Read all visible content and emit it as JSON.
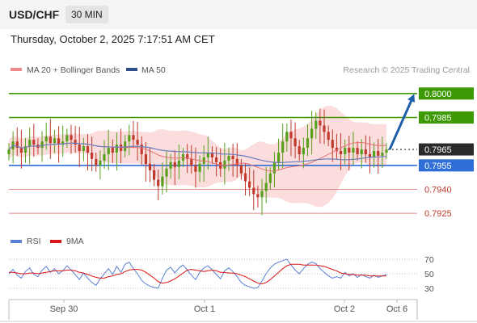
{
  "header": {
    "symbol": "USD/CHF",
    "timeframe": "30 MIN"
  },
  "timestamp": "Thursday, October 2, 2025 7:17:51 AM CET",
  "legend": {
    "bollinger": "MA 20 + Bollinger Bands",
    "ma50": "MA 50"
  },
  "attribution": "Research © 2025 Trading Central",
  "colors": {
    "up": "#56a01c",
    "down": "#c0392b",
    "bollinger_fill": "#f9d1d1",
    "ma20": "#e57373",
    "ma50": "#6b7dbf",
    "resistance": "#3d9a04",
    "pivot": "#2f6ed6",
    "support": "#e58a8a",
    "last": "#2b2b2b",
    "arrow": "#1d5ea8",
    "rsi": "#5b7fd6",
    "rsi_ma": "#d91515"
  },
  "chart_data": [
    {
      "type": "candlestick",
      "title": "",
      "x_tick_labels": [
        "Sep 30",
        "Oct 1",
        "Oct 2",
        "Oct 6"
      ],
      "ylim": [
        0.7917,
        0.8008
      ],
      "y_labels": [
        {
          "value": "0.8000",
          "role": "resistance"
        },
        {
          "value": "0.7985",
          "role": "resistance"
        },
        {
          "value": "0.7965",
          "role": "last"
        },
        {
          "value": "0.7955",
          "role": "pivot"
        },
        {
          "value": "0.7940",
          "role": "support"
        },
        {
          "value": "0.7925",
          "role": "support"
        }
      ],
      "projection": {
        "from": 0.7965,
        "to": 0.8,
        "direction": "up"
      },
      "closes": [
        0.7965,
        0.797,
        0.7966,
        0.7963,
        0.7967,
        0.7971,
        0.7968,
        0.7966,
        0.797,
        0.7973,
        0.7969,
        0.7972,
        0.7968,
        0.797,
        0.7974,
        0.7971,
        0.7968,
        0.7964,
        0.7967,
        0.7963,
        0.7959,
        0.7955,
        0.7958,
        0.7962,
        0.7966,
        0.7963,
        0.7968,
        0.7964,
        0.797,
        0.7974,
        0.7971,
        0.7968,
        0.7962,
        0.7956,
        0.7952,
        0.7946,
        0.7942,
        0.7948,
        0.7953,
        0.7957,
        0.7954,
        0.7958,
        0.7962,
        0.7959,
        0.7955,
        0.7951,
        0.7956,
        0.796,
        0.7963,
        0.796,
        0.7957,
        0.7953,
        0.7958,
        0.7961,
        0.7959,
        0.7955,
        0.795,
        0.7945,
        0.7941,
        0.7937,
        0.7935,
        0.7939,
        0.7944,
        0.795,
        0.7957,
        0.7963,
        0.797,
        0.7976,
        0.7972,
        0.7967,
        0.7962,
        0.7966,
        0.7972,
        0.7978,
        0.7983,
        0.798,
        0.7976,
        0.7971,
        0.7966,
        0.7964,
        0.7962,
        0.7966,
        0.7963,
        0.7966,
        0.7962,
        0.7965,
        0.7962,
        0.796,
        0.7964,
        0.7961,
        0.7963,
        0.7965
      ]
    },
    {
      "type": "line",
      "title": "",
      "series": [
        {
          "name": "RSI"
        },
        {
          "name": "9MA"
        }
      ],
      "y_tick_labels": [
        "70",
        "50",
        "30"
      ],
      "ylim": [
        25,
        75
      ],
      "rsi": [
        50,
        56,
        48,
        44,
        53,
        58,
        49,
        46,
        55,
        60,
        52,
        57,
        50,
        54,
        61,
        55,
        49,
        42,
        51,
        44,
        38,
        34,
        43,
        50,
        57,
        49,
        60,
        52,
        63,
        66,
        57,
        50,
        41,
        36,
        33,
        31,
        30,
        44,
        55,
        59,
        51,
        58,
        62,
        55,
        48,
        42,
        52,
        58,
        61,
        55,
        49,
        43,
        54,
        58,
        53,
        46,
        38,
        34,
        32,
        30,
        31,
        40,
        50,
        58,
        63,
        66,
        68,
        70,
        62,
        55,
        50,
        57,
        63,
        66,
        64,
        57,
        52,
        47,
        44,
        46,
        44,
        52,
        47,
        50,
        45,
        49,
        46,
        44,
        48,
        45,
        47,
        49
      ],
      "rsi_ma": [
        52,
        52,
        51,
        50,
        50,
        51,
        51,
        50,
        51,
        52,
        53,
        54,
        54,
        54,
        55,
        55,
        54,
        52,
        51,
        49,
        47,
        45,
        44,
        44,
        46,
        47,
        49,
        50,
        53,
        55,
        56,
        56,
        55,
        52,
        48,
        44,
        39,
        37,
        38,
        40,
        43,
        47,
        51,
        55,
        56,
        55,
        54,
        53,
        54,
        55,
        54,
        52,
        52,
        51,
        51,
        50,
        48,
        46,
        43,
        40,
        37,
        36,
        38,
        42,
        47,
        52,
        57,
        61,
        63,
        63,
        63,
        62,
        62,
        62,
        62,
        61,
        60,
        58,
        56,
        54,
        51,
        50,
        49,
        49,
        48,
        48,
        48,
        47,
        47,
        47,
        47,
        47
      ]
    }
  ]
}
